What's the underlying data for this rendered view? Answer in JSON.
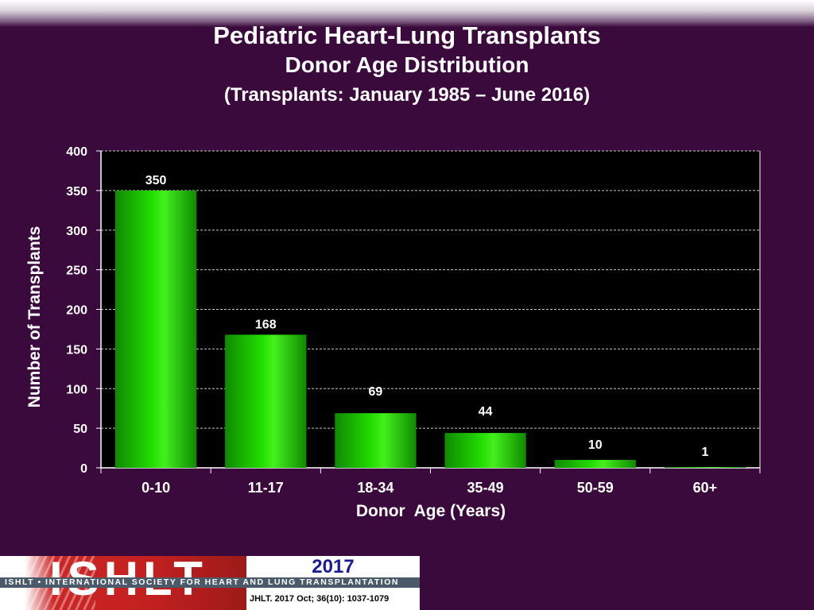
{
  "header": {
    "title": "Pediatric Heart-Lung Transplants",
    "subtitle": "Donor Age Distribution",
    "period": "(Transplants: January 1985 – June 2016)"
  },
  "chart_data": {
    "type": "bar",
    "title": "Pediatric Heart-Lung Transplants",
    "subtitle": "Donor Age Distribution",
    "categories": [
      "0-10",
      "11-17",
      "18-34",
      "35-49",
      "50-59",
      "60+"
    ],
    "values": [
      350,
      168,
      69,
      44,
      10,
      1
    ],
    "xlabel": "Donor  Age (Years)",
    "ylabel": "Number of Transplants",
    "ylim": [
      0,
      400
    ],
    "yticks": [
      0,
      50,
      100,
      150,
      200,
      250,
      300,
      350,
      400
    ],
    "grid": true,
    "legend": "none",
    "colors": {
      "bar": "#22dd00",
      "background": "#000000",
      "grid": "#c8c8c8",
      "text": "#ffffff"
    }
  },
  "footer": {
    "logo_text": "ISHLT",
    "org_name": "ISHLT • INTERNATIONAL SOCIETY FOR HEART AND LUNG TRANSPLANTATION",
    "year": "2017",
    "citation": "JHLT. 2017 Oct; 36(10): 1037-1079"
  }
}
